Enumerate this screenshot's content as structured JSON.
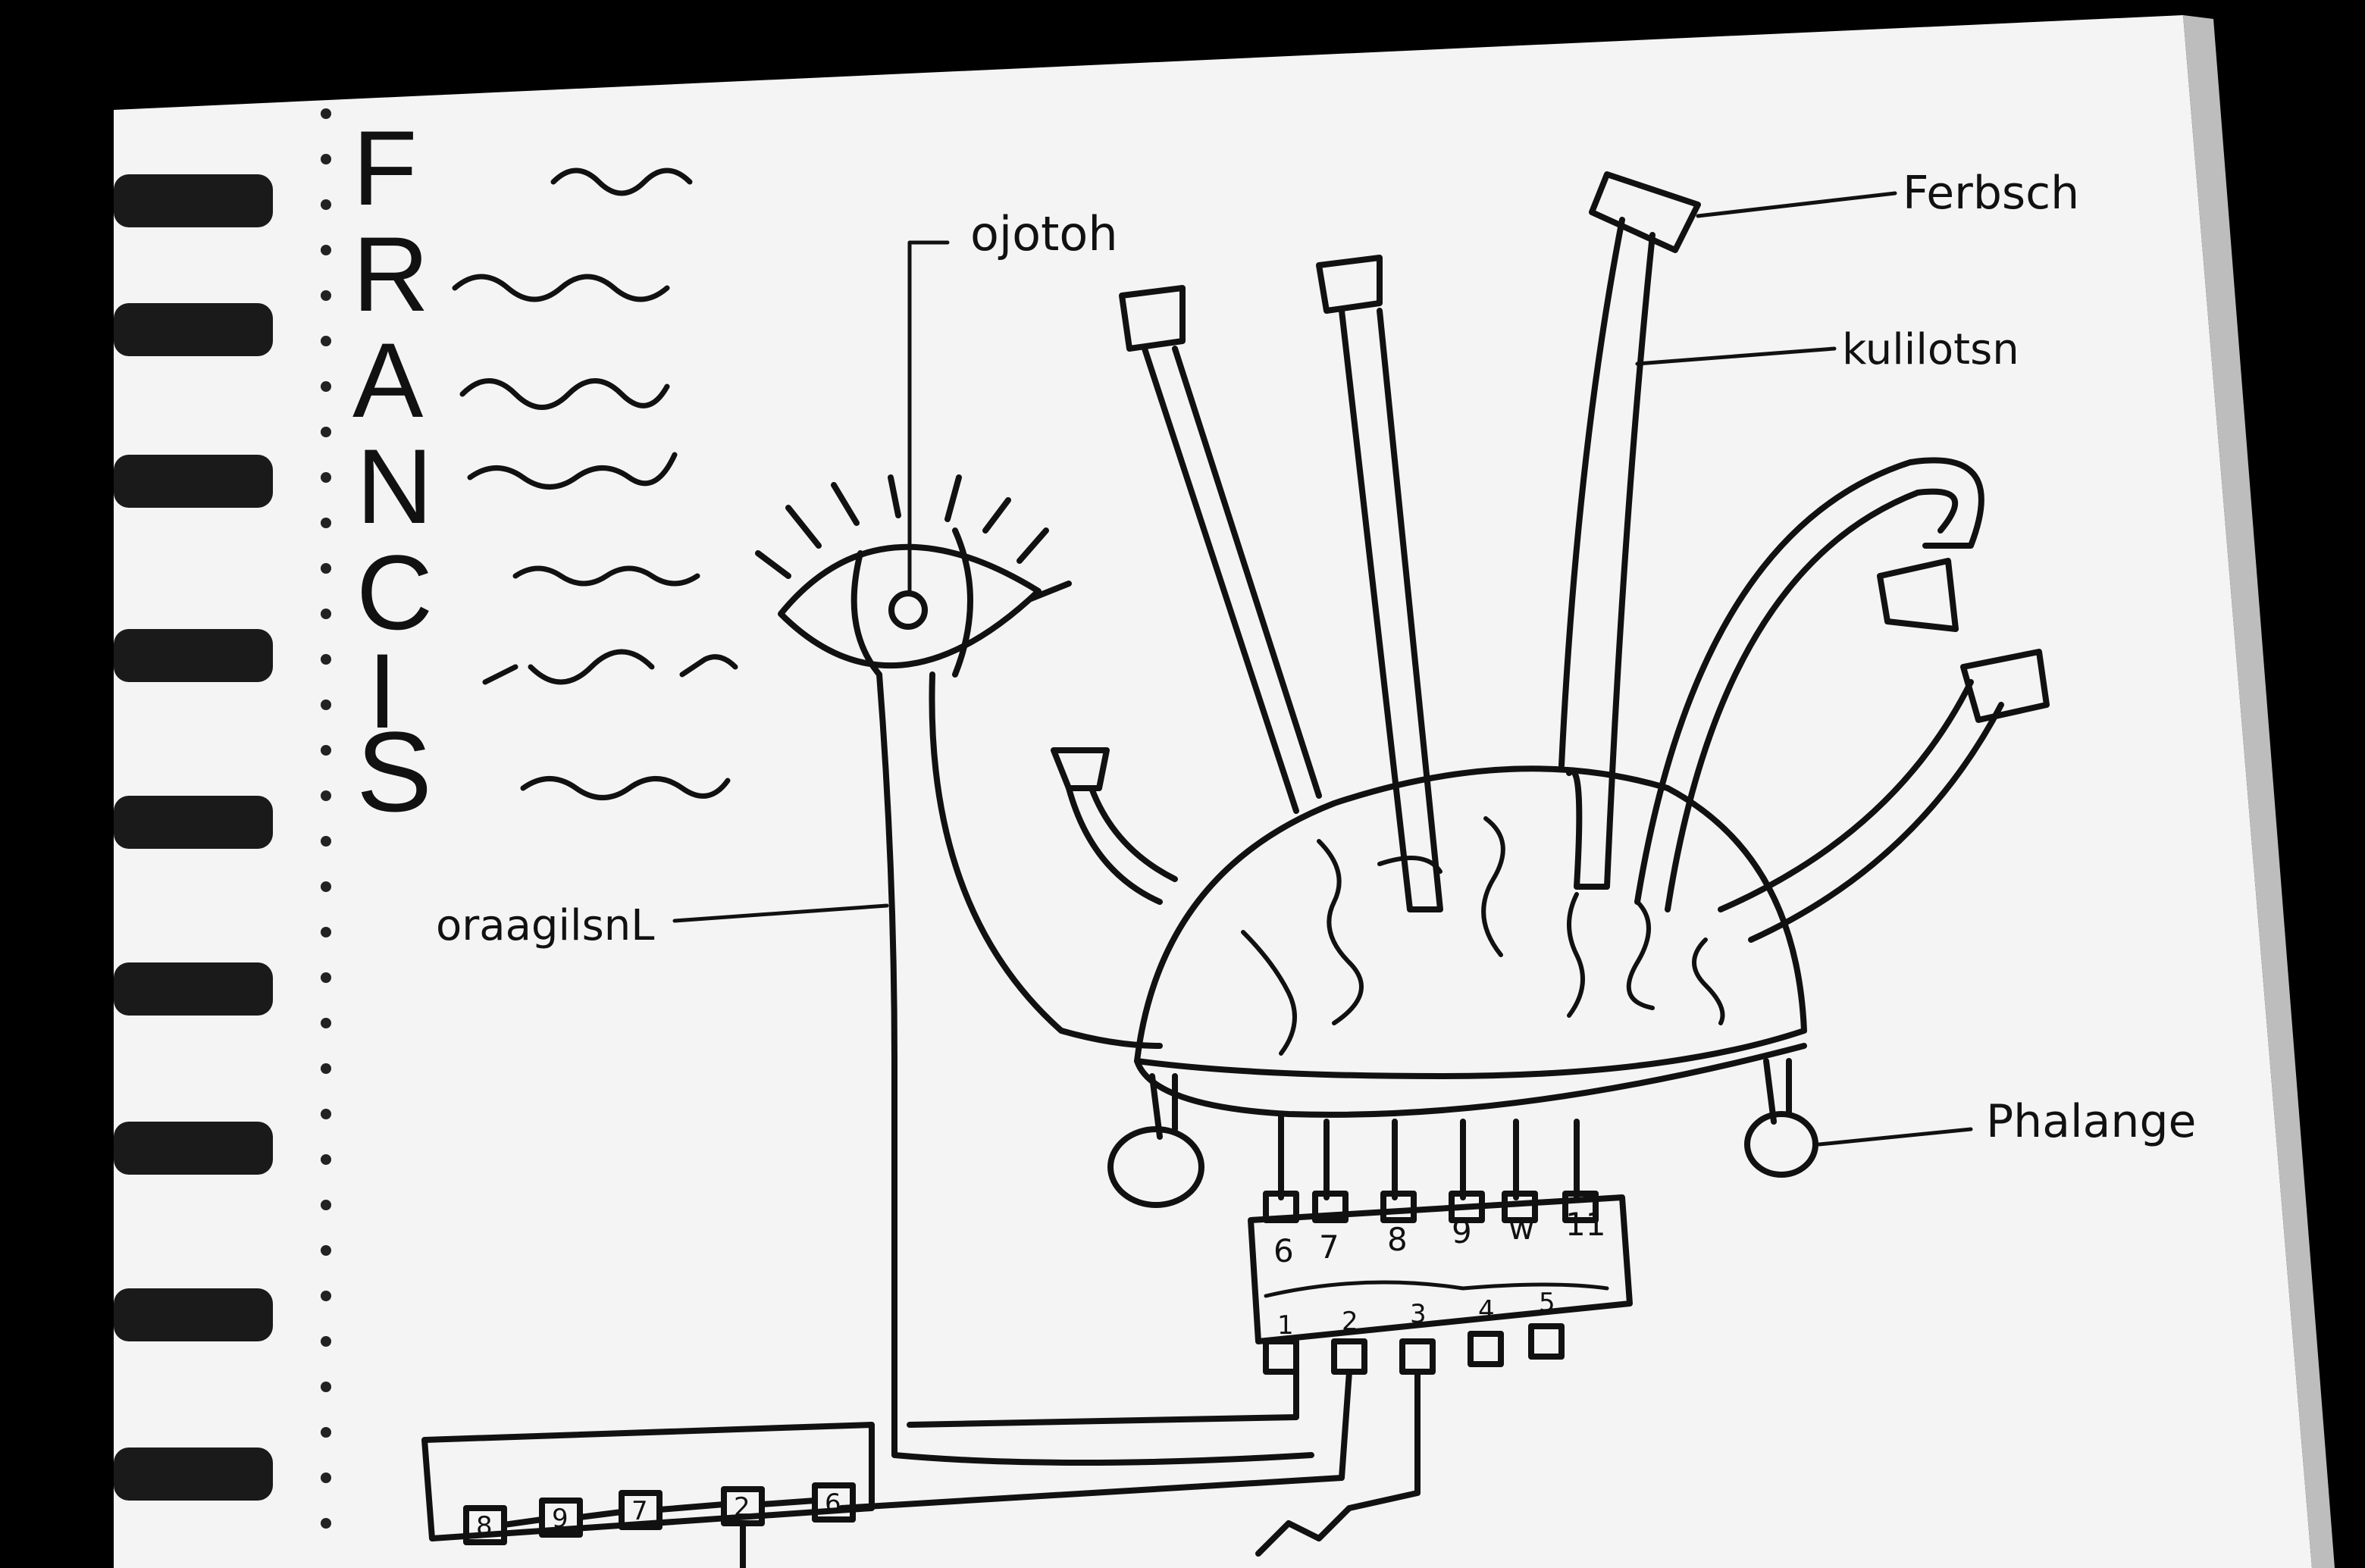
{
  "title_letters": [
    "F",
    "R",
    "A",
    "N",
    "C",
    "I",
    "S"
  ],
  "labels": {
    "eye_label": "ojotoh",
    "top_right_label": "Ferbsch",
    "tube_label": "kulilotsn",
    "stalk_label": "oraagilsnL",
    "foot_label": "Phalange"
  },
  "chip_pins_top": [
    "6",
    "7",
    "8",
    "9",
    "w",
    "11"
  ],
  "chip_pins_bottom": [
    "1",
    "2",
    "3",
    "4",
    "5"
  ],
  "battery_cells": [
    "8",
    "9",
    "7",
    "2",
    "6"
  ],
  "colors": {
    "paper": "#f4f4f4",
    "ink": "#111111",
    "background": "#000000",
    "spiral": "#1a1a1a"
  }
}
